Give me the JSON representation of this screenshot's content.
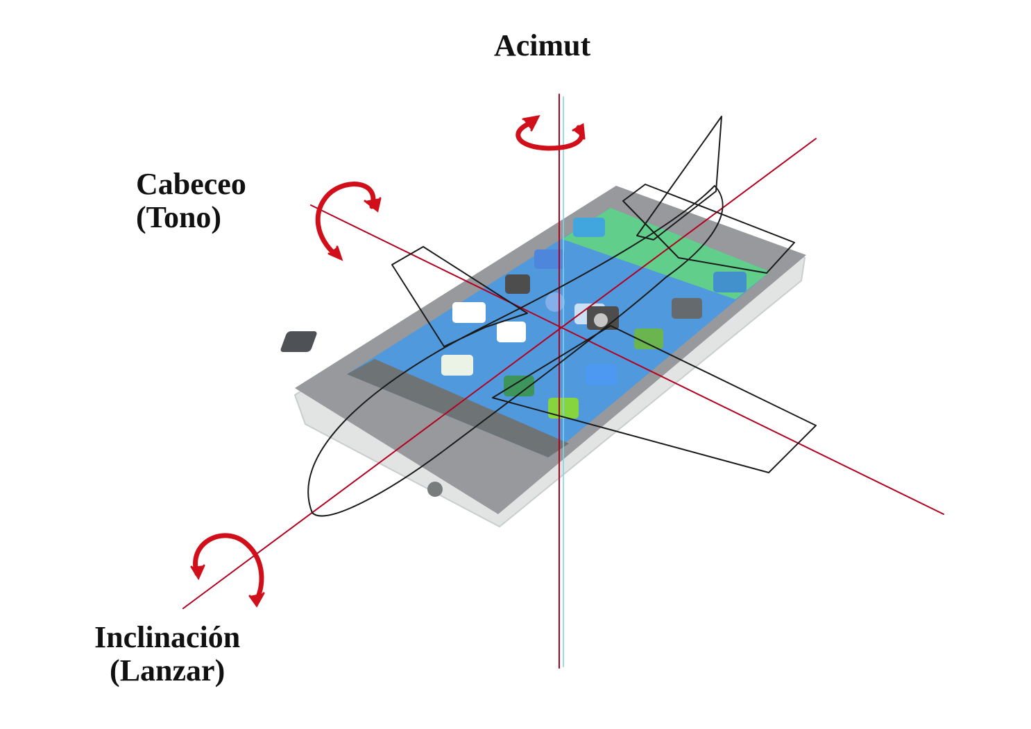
{
  "labels": {
    "azimuth": "Acimut",
    "pitch_line1": "Cabeceo",
    "pitch_line2": "(Tono)",
    "roll_line1": "Inclinación",
    "roll_line2": "(Lanzar)"
  },
  "colors": {
    "axis": "#b3001e",
    "rotation_arrow": "#d10f1a",
    "airplane_outline": "#1a1a1a",
    "phone_body": "#8c8f92",
    "phone_screen": "#3d8fd9",
    "vertical_axis_shadow": "#7fd6e6"
  }
}
